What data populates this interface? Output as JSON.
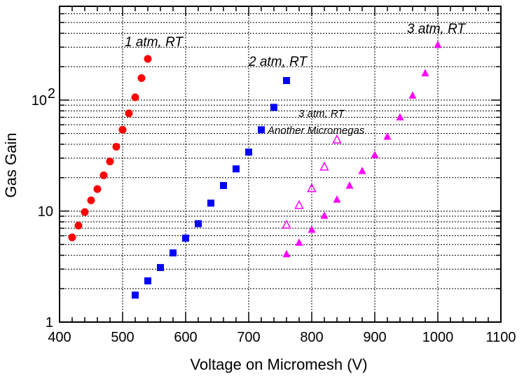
{
  "chart_data": {
    "type": "scatter",
    "title": "",
    "xlabel": "Voltage on Micromesh (V)",
    "ylabel": "Gas Gain",
    "xlim": [
      400,
      1100
    ],
    "ylim": [
      1,
      700
    ],
    "yscale": "log",
    "grid": true,
    "x_ticks": [
      400,
      500,
      600,
      700,
      800,
      900,
      1000,
      1100
    ],
    "x_tick_labels": [
      "400",
      "500",
      "600",
      "700",
      "800",
      "900",
      "1000",
      "1100"
    ],
    "y_tick_labels": [
      {
        "value": 1,
        "base": "1",
        "exp": ""
      },
      {
        "value": 10,
        "base": "10",
        "exp": ""
      },
      {
        "value": 100,
        "base": "10",
        "exp": "2"
      }
    ],
    "series": [
      {
        "name": "1 atm, RT",
        "marker": "circle",
        "color": "#ff0000",
        "x": [
          420,
          430,
          440,
          450,
          460,
          470,
          480,
          490,
          500,
          510,
          520,
          530,
          540
        ],
        "y": [
          5.8,
          7.4,
          9.8,
          12.5,
          15.8,
          21,
          28,
          38,
          54,
          76,
          106,
          158,
          235
        ]
      },
      {
        "name": "2 atm, RT",
        "marker": "square",
        "color": "#0000ff",
        "x": [
          520,
          540,
          560,
          580,
          600,
          620,
          640,
          660,
          680,
          700,
          720,
          740,
          760
        ],
        "y": [
          1.75,
          2.35,
          3.1,
          4.2,
          5.7,
          7.7,
          11.8,
          17,
          24,
          34,
          54,
          86,
          150
        ]
      },
      {
        "name": "3 atm, RT",
        "marker": "triangle",
        "color": "#ff00ff",
        "x": [
          760,
          780,
          800,
          820,
          840,
          860,
          880,
          900,
          920,
          940,
          960,
          980,
          1000
        ],
        "y": [
          4.1,
          5.2,
          6.8,
          9.1,
          12.7,
          17,
          23,
          32,
          47,
          70,
          110,
          175,
          315
        ]
      },
      {
        "name": "3 atm, RT Another Micromegas",
        "marker": "triangle-open",
        "color": "#ff00ff",
        "x": [
          760,
          780,
          800,
          820,
          840
        ],
        "y": [
          7.5,
          11.3,
          16,
          25,
          44
        ]
      }
    ],
    "annotations": [
      {
        "id": "one-atm",
        "text": "1 atm, RT"
      },
      {
        "id": "two-atm",
        "text": "2 atm, RT"
      },
      {
        "id": "three-atm",
        "text": "3 atm, RT"
      },
      {
        "id": "three-atm-other",
        "text": "3 atm, RT"
      },
      {
        "id": "another-micromegas",
        "text": "Another Micromegas"
      }
    ]
  }
}
